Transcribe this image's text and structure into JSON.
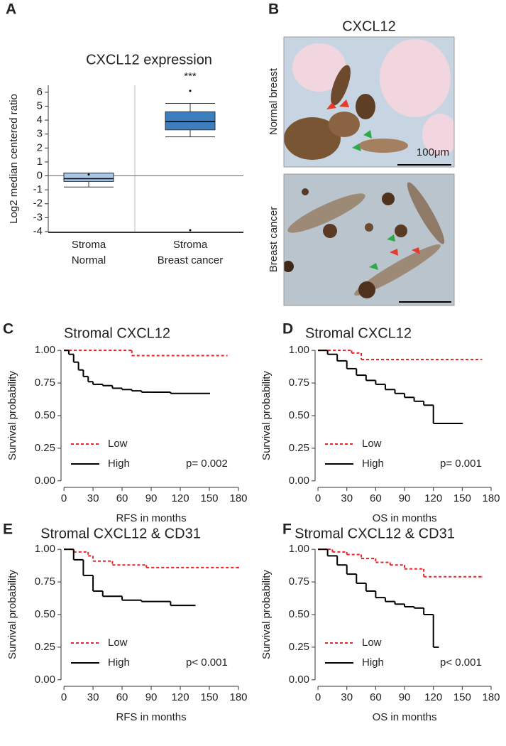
{
  "chart_data": [
    {
      "type": "box",
      "panel": "A",
      "title": "CXCL12 expression",
      "annotation": "***",
      "y_label": "Log2 median centered ratio",
      "categories": [
        [
          "Stroma",
          "Normal"
        ],
        [
          "Stroma",
          "Breast cancer"
        ]
      ],
      "colors": [
        "#a9c6e4",
        "#3d7ebf"
      ],
      "boxes": [
        {
          "whisker_low": -0.8,
          "q1": -0.4,
          "median": -0.2,
          "q3": 0.2,
          "whisker_high": 0.2,
          "outliers": [
            0.1
          ]
        },
        {
          "whisker_low": 2.8,
          "q1": 3.3,
          "median": 3.9,
          "q3": 4.6,
          "whisker_high": 5.2,
          "outliers": [
            6.1,
            -3.9
          ]
        }
      ],
      "ylim": [
        -4.05,
        6.5
      ],
      "yticks": [
        -4,
        -3,
        -2,
        -1,
        0,
        1,
        2,
        3,
        4,
        5,
        6
      ]
    },
    {
      "type": "image",
      "panel": "B",
      "title": "CXCL12",
      "images": [
        {
          "label": "Normal breast",
          "scale_bar": "100μm"
        },
        {
          "label": "Breast cancer"
        }
      ]
    },
    {
      "type": "survival",
      "panel": "C",
      "title": "Stromal CXCL12",
      "x_label": "RFS in months",
      "y_label": "Survival probability",
      "annotation": "p= 0.002",
      "xlim": [
        -3,
        180
      ],
      "xticks": [
        0,
        30,
        60,
        90,
        120,
        150,
        180
      ],
      "ylim": [
        -0.05,
        1.05
      ],
      "yticks": [
        {
          "value": 0,
          "label": "0.00"
        },
        {
          "value": 0.25,
          "label": "0.25"
        },
        {
          "value": 0.5,
          "label": "0.50"
        },
        {
          "value": 0.75,
          "label": "0.75"
        },
        {
          "value": 1,
          "label": "1.00"
        }
      ],
      "series": [
        {
          "name": "Low",
          "color": "#e8262a",
          "dashed": true,
          "x": [
            0,
            70,
            168
          ],
          "values": [
            1,
            0.96,
            0.96
          ]
        },
        {
          "name": "High",
          "color": "#000000",
          "dashed": false,
          "x": [
            0,
            5,
            10,
            15,
            20,
            25,
            30,
            40,
            50,
            60,
            70,
            80,
            90,
            110,
            150
          ],
          "values": [
            1,
            0.97,
            0.91,
            0.85,
            0.8,
            0.76,
            0.74,
            0.73,
            0.71,
            0.7,
            0.69,
            0.68,
            0.68,
            0.67,
            0.67
          ]
        }
      ]
    },
    {
      "type": "survival",
      "panel": "D",
      "title": "Stromal CXCL12",
      "x_label": "OS in months",
      "y_label": "Survival probability",
      "annotation": "p= 0.001",
      "xlim": [
        -3,
        180
      ],
      "xticks": [
        0,
        30,
        60,
        90,
        120,
        150,
        180
      ],
      "ylim": [
        -0.05,
        1.05
      ],
      "yticks": [
        {
          "value": 0,
          "label": "0.00"
        },
        {
          "value": 0.25,
          "label": "0.25"
        },
        {
          "value": 0.5,
          "label": "0.50"
        },
        {
          "value": 0.75,
          "label": "0.75"
        },
        {
          "value": 1,
          "label": "1.00"
        }
      ],
      "series": [
        {
          "name": "Low",
          "color": "#e8262a",
          "dashed": true,
          "x": [
            0,
            35,
            45,
            170
          ],
          "values": [
            1,
            0.98,
            0.93,
            0.93
          ]
        },
        {
          "name": "High",
          "color": "#000000",
          "dashed": false,
          "x": [
            0,
            10,
            20,
            30,
            40,
            50,
            60,
            70,
            80,
            90,
            100,
            110,
            120,
            150
          ],
          "values": [
            1,
            0.97,
            0.92,
            0.86,
            0.81,
            0.77,
            0.74,
            0.7,
            0.67,
            0.64,
            0.61,
            0.58,
            0.44,
            0.44
          ]
        }
      ]
    },
    {
      "type": "survival",
      "panel": "E",
      "title": "Stromal CXCL12 & CD31",
      "x_label": "RFS in months",
      "y_label": "Survival probability",
      "annotation": "p< 0.001",
      "xlim": [
        -3,
        180
      ],
      "xticks": [
        0,
        30,
        60,
        90,
        120,
        150,
        180
      ],
      "ylim": [
        -0.05,
        1.05
      ],
      "yticks": [
        {
          "value": 0,
          "label": "0.00"
        },
        {
          "value": 0.25,
          "label": "0.25"
        },
        {
          "value": 0.5,
          "label": "0.50"
        },
        {
          "value": 0.75,
          "label": "0.75"
        },
        {
          "value": 1,
          "label": "1.00"
        }
      ],
      "series": [
        {
          "name": "Low",
          "color": "#e8262a",
          "dashed": true,
          "x": [
            0,
            10,
            25,
            30,
            50,
            85,
            180
          ],
          "values": [
            1,
            0.98,
            0.95,
            0.91,
            0.88,
            0.86,
            0.86
          ]
        },
        {
          "name": "High",
          "color": "#000000",
          "dashed": false,
          "x": [
            0,
            10,
            20,
            30,
            40,
            60,
            80,
            110,
            135
          ],
          "values": [
            1,
            0.92,
            0.8,
            0.68,
            0.64,
            0.61,
            0.6,
            0.57,
            0.57
          ]
        }
      ]
    },
    {
      "type": "survival",
      "panel": "F",
      "title": "Stromal CXCL12 & CD31",
      "x_label": "OS in months",
      "y_label": "Survival probability",
      "annotation": "p< 0.001",
      "xlim": [
        -3,
        180
      ],
      "xticks": [
        0,
        30,
        60,
        90,
        120,
        150,
        180
      ],
      "ylim": [
        -0.05,
        1.05
      ],
      "yticks": [
        {
          "value": 0,
          "label": "0.00"
        },
        {
          "value": 0.25,
          "label": "0.25"
        },
        {
          "value": 0.5,
          "label": "0.50"
        },
        {
          "value": 0.75,
          "label": "0.75"
        },
        {
          "value": 1,
          "label": "1.00"
        }
      ],
      "series": [
        {
          "name": "Low",
          "color": "#e8262a",
          "dashed": true,
          "x": [
            0,
            15,
            30,
            45,
            60,
            75,
            90,
            110,
            170
          ],
          "values": [
            1,
            0.98,
            0.96,
            0.93,
            0.9,
            0.88,
            0.85,
            0.79,
            0.79
          ]
        },
        {
          "name": "High",
          "color": "#000000",
          "dashed": false,
          "x": [
            0,
            10,
            20,
            30,
            40,
            50,
            60,
            70,
            80,
            90,
            100,
            110,
            120,
            125
          ],
          "values": [
            1,
            0.95,
            0.88,
            0.81,
            0.74,
            0.68,
            0.63,
            0.6,
            0.58,
            0.56,
            0.55,
            0.5,
            0.25,
            0.25
          ]
        }
      ]
    }
  ]
}
